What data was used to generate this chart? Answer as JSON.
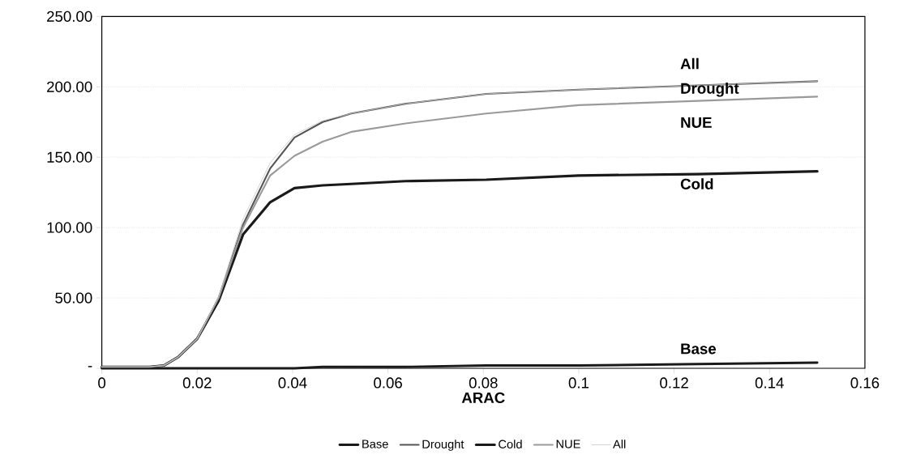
{
  "chart_data": {
    "type": "line",
    "xlabel": "ARAC",
    "x": [
      0,
      0.005,
      0.01,
      0.013,
      0.016,
      0.02,
      0.0245,
      0.0296,
      0.0353,
      0.0404,
      0.0463,
      0.0523,
      0.0637,
      0.0806,
      0.1,
      0.125,
      0.15
    ],
    "series": [
      {
        "name": "Base",
        "color": "#1a1a1a",
        "values": [
          0,
          0,
          0,
          0,
          0,
          0,
          0,
          0,
          0,
          0,
          1,
          1,
          1,
          2,
          2,
          3,
          4
        ]
      },
      {
        "name": "Drought",
        "color": "#555555",
        "values": [
          1,
          1,
          1,
          2,
          8,
          21,
          50,
          102,
          142,
          164,
          175,
          181,
          188,
          195,
          198,
          201,
          204
        ]
      },
      {
        "name": "Cold",
        "color": "#1a1a1a",
        "values": [
          1,
          1,
          1,
          2,
          8,
          21,
          48,
          95,
          118,
          128,
          130,
          131,
          133,
          134,
          137,
          138,
          140
        ]
      },
      {
        "name": "NUE",
        "color": "#9a9a9a",
        "values": [
          1,
          1,
          1,
          2,
          8,
          21,
          50,
          100,
          137,
          151,
          161,
          168,
          174,
          181,
          187,
          190,
          193
        ]
      },
      {
        "name": "All",
        "color": "#c8c8c8",
        "values": [
          1,
          1,
          1,
          2,
          8,
          21,
          51,
          106,
          146,
          166,
          176,
          181,
          188,
          195,
          198,
          201,
          204
        ]
      }
    ],
    "xlim": [
      0,
      0.16
    ],
    "xticks": [
      0,
      0.02,
      0.04,
      0.06,
      0.08,
      0.1,
      0.12,
      0.14,
      0.16
    ],
    "ylim": [
      0,
      250
    ],
    "yticks": [
      {
        "value": 0,
        "label": "-"
      },
      {
        "value": 50,
        "label": "50.00"
      },
      {
        "value": 100,
        "label": "100.00"
      },
      {
        "value": 150,
        "label": "150.00"
      },
      {
        "value": 200,
        "label": "200.00"
      },
      {
        "value": 250,
        "label": "250.00"
      }
    ],
    "grid": "y",
    "legend": "bottom",
    "marker": "none",
    "line_style": "solid",
    "annotations": [
      "Base",
      "Drought",
      "Cold",
      "NUE",
      "All"
    ]
  }
}
